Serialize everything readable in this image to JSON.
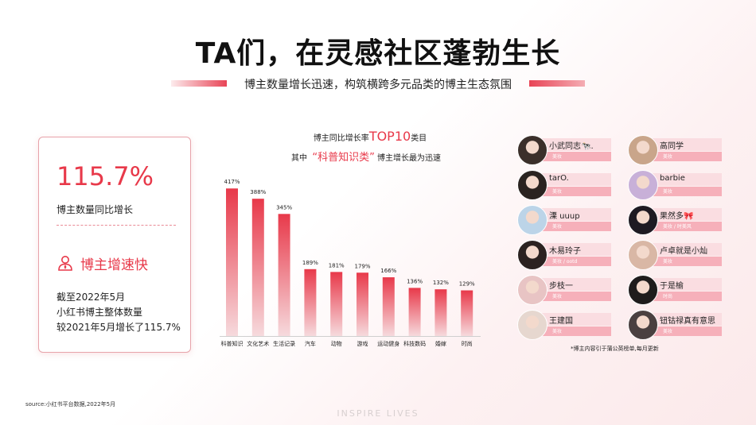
{
  "title": "TA们，在灵感社区蓬勃生长",
  "subtitle": "博主数量增长迅速，构筑横跨多元品类的博主生态氛围",
  "card": {
    "growth_value": "115.7%",
    "growth_label": "博主数量同比增长",
    "speed_title": "博主增速快",
    "desc_lines": [
      "截至2022年5月",
      "小红书博主整体数量",
      "较2021年5月增长了115.7%"
    ]
  },
  "chart_header": {
    "line1_pre": "博主同比增长率",
    "line1_hl": "TOP10",
    "line1_post": "类目",
    "line2_pre": "其中",
    "line2_hl": "“科普知识类”",
    "line2_post": "博主增长最为迅速"
  },
  "chart_data": {
    "type": "bar",
    "categories": [
      "科普知识",
      "文化艺术",
      "生活记录",
      "汽车",
      "动物",
      "游戏",
      "运动健身",
      "科技数码",
      "婚嫁",
      "时尚"
    ],
    "values": [
      417,
      388,
      345,
      189,
      181,
      179,
      166,
      136,
      132,
      129
    ],
    "value_labels": [
      "417%",
      "388%",
      "345%",
      "189%",
      "181%",
      "179%",
      "166%",
      "136%",
      "132%",
      "129%"
    ],
    "ylim": [
      0,
      440
    ],
    "bar_color_top": "#e8394a",
    "bar_color_bottom": "#f6dadd"
  },
  "kols": [
    {
      "name": "小武同志🐄.",
      "category": "美妆"
    },
    {
      "name": "高同学",
      "category": "美妆"
    },
    {
      "name": "tarO.",
      "category": "美妆"
    },
    {
      "name": "barbie",
      "category": "美妆"
    },
    {
      "name": "溧 uuup",
      "category": "美妆"
    },
    {
      "name": "果然多🎀",
      "category": "美妆 / 时美风"
    },
    {
      "name": "木易玲子",
      "category": "美妆 / ootd"
    },
    {
      "name": "卢卓就是小灿",
      "category": "美妆"
    },
    {
      "name": "步枝一",
      "category": "美妆"
    },
    {
      "name": "于是榆",
      "category": "时尚"
    },
    {
      "name": "王建国",
      "category": "美妆"
    },
    {
      "name": "钮钴禄真有意思",
      "category": "美妆"
    }
  ],
  "kol_note": "*博主内容引于蒲公英榜单,每月更新",
  "source": "source:小红书平台数据,2022年5月",
  "watermark": "INSPIRE LIVES",
  "colors": {
    "accent": "#e8394a",
    "bar_light": "#fadde1",
    "bar_dark": "#f6b0ba"
  },
  "icons": {
    "speed": "person-shield-icon"
  }
}
